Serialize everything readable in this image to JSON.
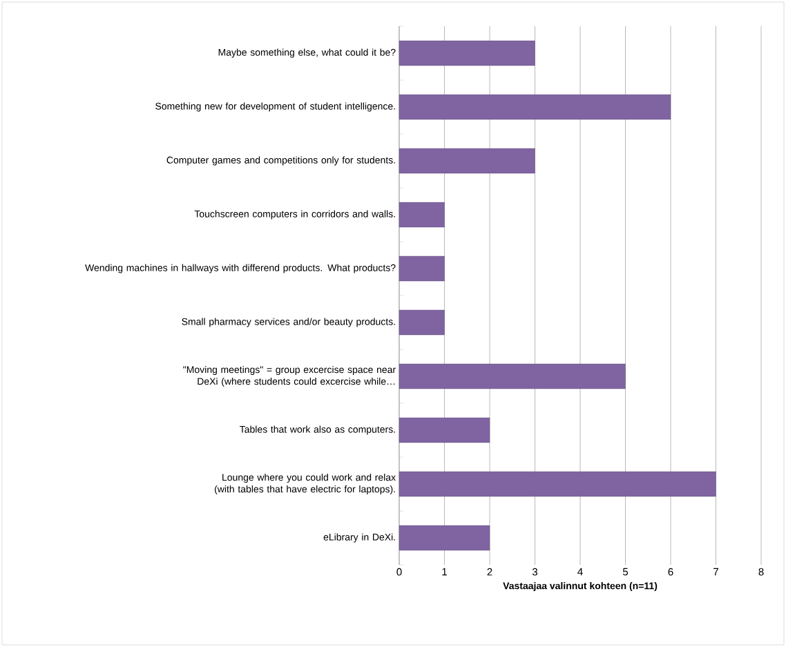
{
  "chart_data": {
    "type": "bar",
    "orientation": "horizontal",
    "xlabel": "Vastaajaa valinnut kohteen (n=11)",
    "categories": [
      "Maybe something else, what could it be?",
      "Something new for development of student intelligence.",
      "Computer games and competitions only for students.",
      "Touchscreen computers in corridors and walls.",
      "Wending machines in hallways with differend products. What products?",
      "Small pharmacy services and/or beauty products.",
      "\"Moving meetings\" = group excercise space near DeXi (where students could excercise while…",
      "Tables that work also as computers.",
      "Lounge where you could work and relax (with tables that have electric for laptops).",
      "eLibrary in DeXi."
    ],
    "values": [
      3,
      6,
      3,
      1,
      1,
      1,
      5,
      2,
      7,
      2
    ],
    "color": "#8064a2",
    "xlim": [
      0,
      8
    ],
    "xticks": [
      0,
      1,
      2,
      3,
      4,
      5,
      6,
      7,
      8
    ],
    "grid": "x"
  }
}
